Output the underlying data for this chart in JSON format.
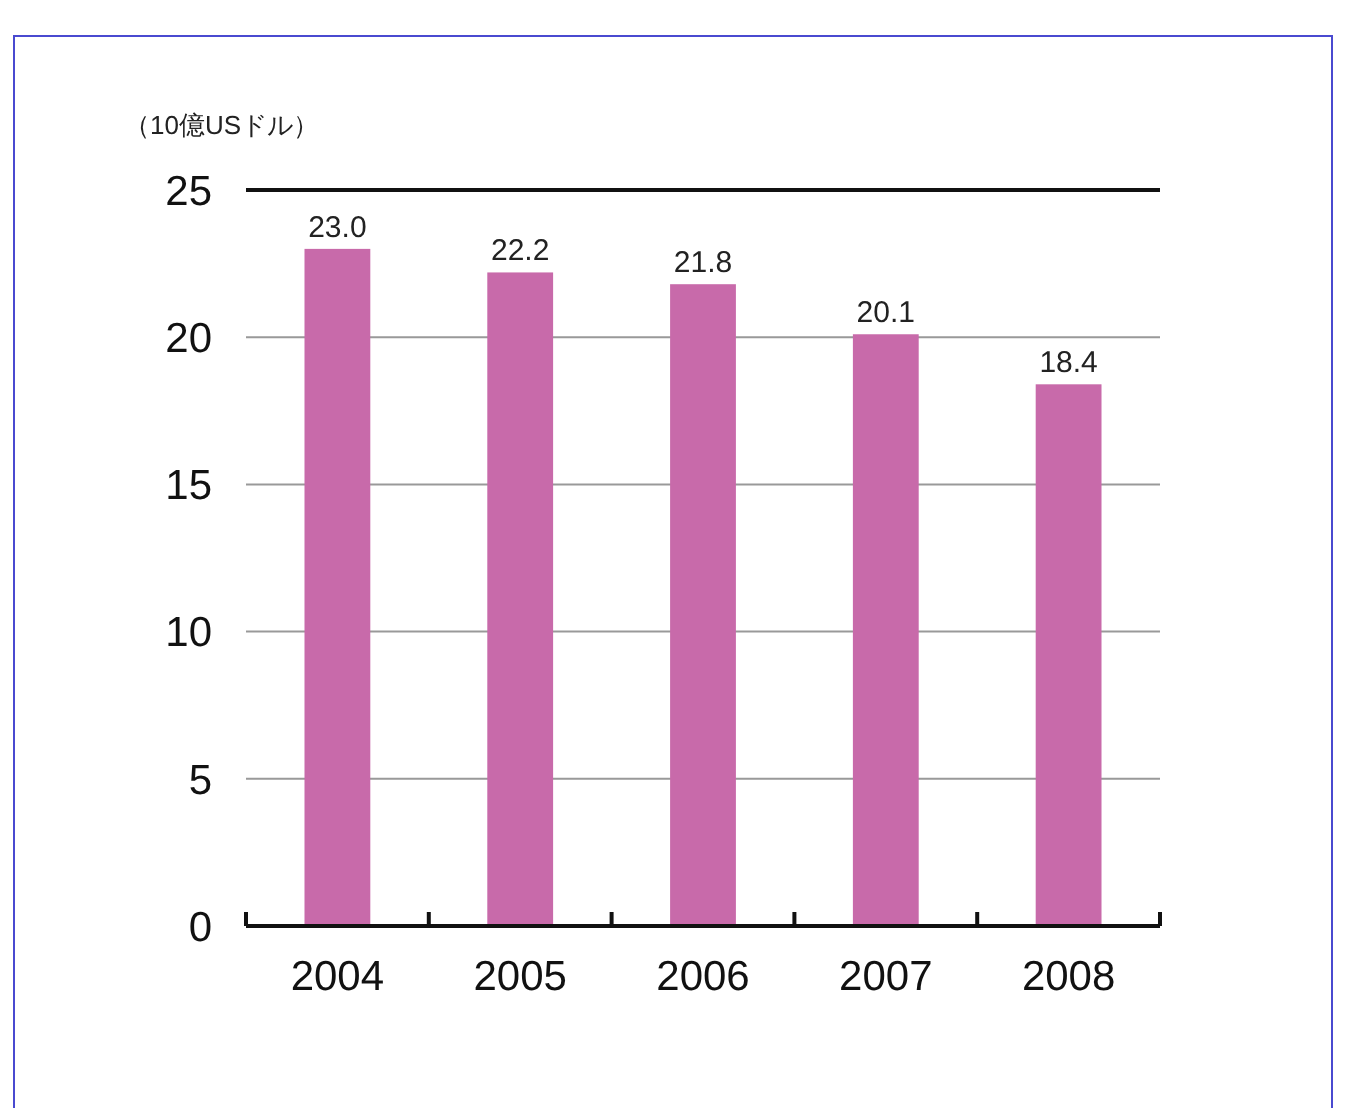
{
  "chart_data": {
    "type": "bar",
    "ylabel": "（10億USドル）",
    "categories": [
      "2004",
      "2005",
      "2006",
      "2007",
      "2008"
    ],
    "values": [
      23.0,
      22.2,
      21.8,
      20.1,
      18.4
    ],
    "color": "#c86aaa",
    "value_labels": [
      "23.0",
      "22.2",
      "21.8",
      "20.1",
      "18.4"
    ],
    "ylim": [
      0,
      25
    ],
    "yticks": [
      0,
      5,
      10,
      15,
      20,
      25
    ],
    "grid": "y"
  }
}
